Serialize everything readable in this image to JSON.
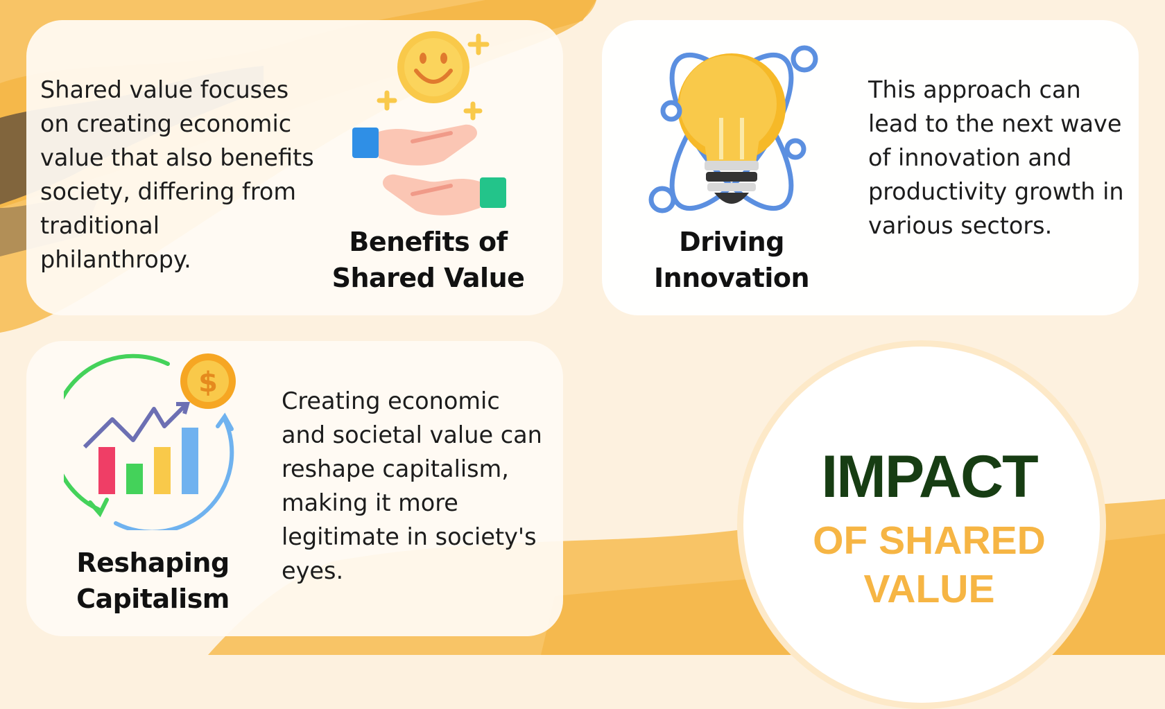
{
  "colors": {
    "background": "#fdf1df",
    "brush_orange": "#f8c466",
    "title_dark_green": "#173d13",
    "title_orange": "#f6b544"
  },
  "cards": [
    {
      "title": "Benefits of\nShared Value",
      "body": "Shared value focuses\non creating economic\nvalue that also benefits\nsociety, differing from\ntraditional\nphilanthropy.",
      "icon": "smiley-hands-icon"
    },
    {
      "title": "Driving\nInnovation",
      "body": "This approach can\nlead to the next wave\nof innovation and\nproductivity growth in\nvarious sectors.",
      "icon": "lightbulb-atom-icon"
    },
    {
      "title": "Reshaping\nCapitalism",
      "body": "Creating economic\nand societal value can\nreshape capitalism,\nmaking it more\nlegitimate in society's\neyes.",
      "icon": "growth-chart-dollar-icon"
    }
  ],
  "heading": {
    "line1": "IMPACT",
    "line2": "OF SHARED\nVALUE"
  }
}
